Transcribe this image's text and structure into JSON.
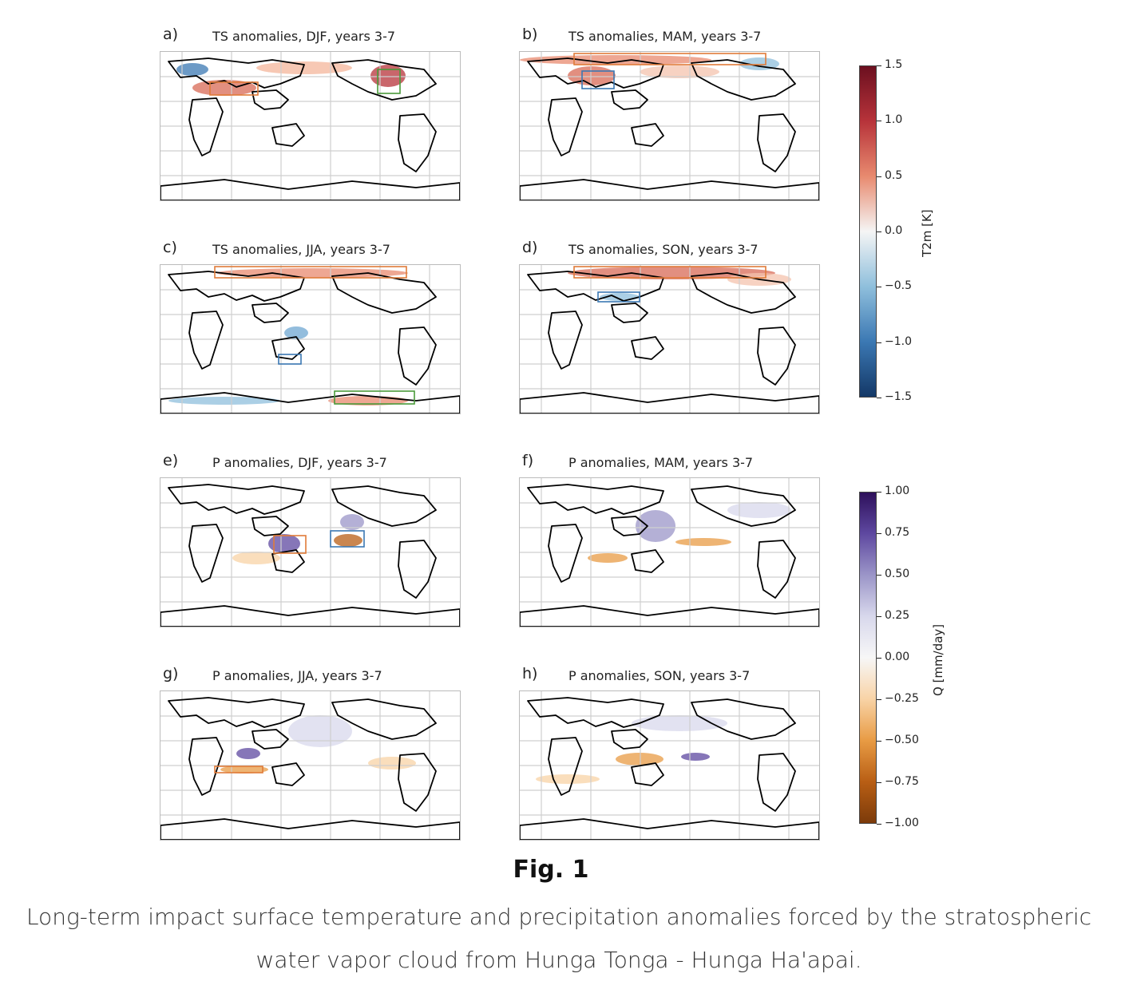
{
  "panels": [
    {
      "letter": "a)",
      "title": "TS anomalies, DJF, years 3-7",
      "kind": "ts"
    },
    {
      "letter": "b)",
      "title": "TS anomalies, MAM, years 3-7",
      "kind": "ts"
    },
    {
      "letter": "c)",
      "title": "TS anomalies, JJA, years 3-7",
      "kind": "ts"
    },
    {
      "letter": "d)",
      "title": "TS anomalies, SON, years 3-7",
      "kind": "ts"
    },
    {
      "letter": "e)",
      "title": "P anomalies, DJF, years 3-7",
      "kind": "p"
    },
    {
      "letter": "f)",
      "title": "P anomalies, MAM, years 3-7",
      "kind": "p"
    },
    {
      "letter": "g)",
      "title": "P anomalies, JJA, years 3-7",
      "kind": "p"
    },
    {
      "letter": "h)",
      "title": "P anomalies, SON, years 3-7",
      "kind": "p"
    }
  ],
  "colorbar_ts": {
    "label": "T2m [K]",
    "ticks": [
      "1.5",
      "1.0",
      "0.5",
      "0.0",
      "−0.5",
      "−1.0",
      "−1.5"
    ],
    "colors": [
      "#6b0f1f",
      "#b7333a",
      "#e88a6f",
      "#f5f5f5",
      "#8fbfdc",
      "#3b78b3",
      "#133766"
    ]
  },
  "colorbar_p": {
    "label": "Q [mm/day]",
    "ticks": [
      "1.00",
      "0.75",
      "0.50",
      "0.25",
      "0.00",
      "−0.25",
      "−0.50",
      "−0.75",
      "−1.00"
    ],
    "colors": [
      "#2d0f5a",
      "#5e48a0",
      "#9b95c8",
      "#d8d8ec",
      "#f7f7f7",
      "#f8d3a6",
      "#e89b44",
      "#b85e14",
      "#7b3a0a"
    ]
  },
  "figure": {
    "label": "Fig. 1",
    "caption": "Long-term impact surface temperature and precipitation anomalies forced by the stratospheric water vapor cloud from Hunga Tonga - Hunga Ha'apai."
  }
}
